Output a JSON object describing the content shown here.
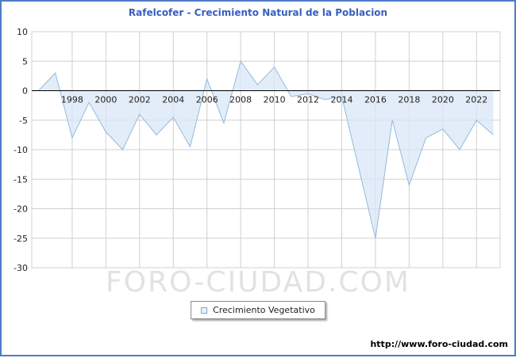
{
  "title": "Rafelcofer - Crecimiento Natural de la Poblacion",
  "legend": {
    "label": "Crecimiento Vegetativo"
  },
  "watermark": "FORO-CIUDAD.COM",
  "footer_url": "http://www.foro-ciudad.com",
  "colors": {
    "border_blue": "#4d7cc7",
    "title_blue": "#3a5fbf",
    "grid": "#d0d0d0",
    "area_fill": "#d9e7f7",
    "line": "#94b9dd",
    "zero_axis": "#000000",
    "watermark_gray": "#e2e2e2"
  },
  "chart_data": {
    "type": "area",
    "title": "Rafelcofer - Crecimiento Natural de la Poblacion",
    "xlabel": "",
    "ylabel": "",
    "ylim": [
      -30,
      10
    ],
    "ytick_step": 5,
    "yticks": [
      10,
      5,
      0,
      -5,
      -10,
      -15,
      -20,
      -25,
      -30
    ],
    "xticks": [
      1998,
      2000,
      2002,
      2004,
      2006,
      2008,
      2010,
      2012,
      2014,
      2016,
      2018,
      2020,
      2022
    ],
    "grid": true,
    "legend_position": "bottom-center",
    "x": [
      1996,
      1997,
      1998,
      1999,
      2000,
      2001,
      2002,
      2003,
      2004,
      2005,
      2006,
      2007,
      2008,
      2009,
      2010,
      2011,
      2012,
      2013,
      2014,
      2015,
      2016,
      2017,
      2018,
      2019,
      2020,
      2021,
      2022,
      2023
    ],
    "series": [
      {
        "name": "Crecimiento Vegetativo",
        "values": [
          0,
          3,
          -8,
          -2,
          -7,
          -10,
          -4,
          -7.5,
          -4.5,
          -9.5,
          2,
          -5.5,
          5,
          1,
          4,
          -1,
          -0.5,
          -1.5,
          -1,
          -13,
          -25,
          -5,
          -16,
          -8,
          -6.5,
          -10,
          -5,
          -7.5
        ]
      }
    ]
  }
}
